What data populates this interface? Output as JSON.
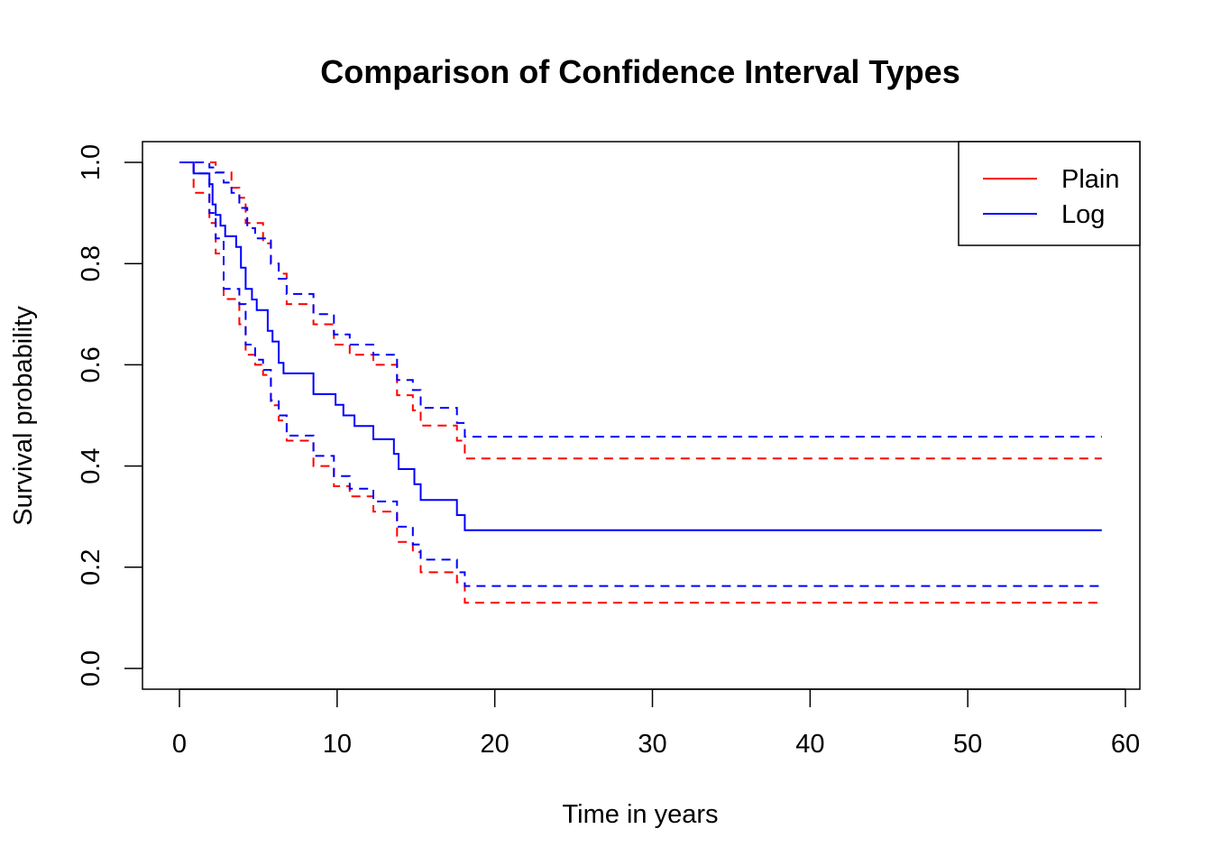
{
  "chart_data": {
    "type": "line",
    "title": "Comparison of Confidence Interval Types",
    "xlabel": "Time in years",
    "ylabel": "Survival probability",
    "xlim": [
      0,
      60
    ],
    "ylim": [
      0,
      1
    ],
    "x_ticks": [
      "0",
      "10",
      "20",
      "30",
      "40",
      "50",
      "60"
    ],
    "y_ticks": [
      "0.0",
      "0.2",
      "0.4",
      "0.6",
      "0.8",
      "1.0"
    ],
    "grid": false,
    "legend": {
      "position": "top-right",
      "entries": [
        {
          "label": "Plain",
          "color": "#ff0000"
        },
        {
          "label": "Log",
          "color": "#0000ff"
        }
      ]
    },
    "series": [
      {
        "name": "Plain",
        "color": "#ff0000",
        "step": true,
        "curves": [
          {
            "role": "upper",
            "dash": true,
            "x": [
              0,
              2.3,
              3.3,
              3.8,
              4.2,
              5.3,
              5.8,
              6.3,
              6.8,
              8.5,
              9.8,
              10.8,
              12.3,
              13.8,
              14.8,
              15.3,
              17.6,
              18.1,
              58.5
            ],
            "y": [
              1.0,
              0.98,
              0.95,
              0.93,
              0.88,
              0.84,
              0.8,
              0.78,
              0.72,
              0.68,
              0.64,
              0.62,
              0.6,
              0.54,
              0.51,
              0.48,
              0.45,
              0.415,
              0.415
            ]
          },
          {
            "role": "lower",
            "dash": true,
            "x": [
              0,
              0.9,
              1.9,
              2.3,
              2.8,
              3.8,
              4.2,
              4.8,
              5.3,
              5.8,
              6.3,
              6.8,
              8.5,
              9.8,
              10.8,
              12.3,
              13.8,
              14.8,
              15.3,
              17.6,
              18.1,
              58.5
            ],
            "y": [
              1.0,
              0.94,
              0.88,
              0.82,
              0.73,
              0.68,
              0.62,
              0.6,
              0.58,
              0.52,
              0.49,
              0.45,
              0.4,
              0.36,
              0.34,
              0.31,
              0.25,
              0.23,
              0.19,
              0.17,
              0.13,
              0.13
            ]
          }
        ]
      },
      {
        "name": "Log",
        "color": "#0000ff",
        "step": true,
        "curves": [
          {
            "role": "estimate",
            "dash": false,
            "x": [
              0,
              0.9,
              1.9,
              2.1,
              2.3,
              2.6,
              2.9,
              3.6,
              3.9,
              4.2,
              4.6,
              4.9,
              5.6,
              5.9,
              6.3,
              6.6,
              7.0,
              8.5,
              9.9,
              10.4,
              11.1,
              12.3,
              13.6,
              13.9,
              14.9,
              15.3,
              17.6,
              18.1,
              58.5
            ],
            "y": [
              1.0,
              0.978,
              0.957,
              0.917,
              0.896,
              0.875,
              0.854,
              0.833,
              0.792,
              0.75,
              0.729,
              0.708,
              0.667,
              0.646,
              0.604,
              0.583,
              0.583,
              0.542,
              0.521,
              0.5,
              0.479,
              0.453,
              0.424,
              0.394,
              0.364,
              0.333,
              0.303,
              0.273,
              0.273
            ]
          },
          {
            "role": "upper",
            "dash": true,
            "x": [
              0,
              1.9,
              2.3,
              2.8,
              3.3,
              3.8,
              4.3,
              4.8,
              5.8,
              6.3,
              6.8,
              8.5,
              9.8,
              10.8,
              12.3,
              13.8,
              14.8,
              15.3,
              17.6,
              18.1,
              58.5
            ],
            "y": [
              1.0,
              0.99,
              0.98,
              0.96,
              0.94,
              0.91,
              0.87,
              0.85,
              0.8,
              0.77,
              0.74,
              0.7,
              0.66,
              0.64,
              0.62,
              0.57,
              0.55,
              0.515,
              0.485,
              0.458,
              0.458
            ]
          },
          {
            "role": "lower",
            "dash": true,
            "x": [
              0,
              0.9,
              1.9,
              2.3,
              2.8,
              3.8,
              4.2,
              4.8,
              5.3,
              5.8,
              6.3,
              6.8,
              8.5,
              9.8,
              10.8,
              12.3,
              13.8,
              14.8,
              15.3,
              17.6,
              18.1,
              58.5
            ],
            "y": [
              1.0,
              0.978,
              0.9,
              0.85,
              0.75,
              0.72,
              0.64,
              0.61,
              0.59,
              0.53,
              0.5,
              0.46,
              0.42,
              0.38,
              0.355,
              0.33,
              0.28,
              0.245,
              0.215,
              0.19,
              0.163,
              0.163
            ]
          }
        ]
      }
    ]
  }
}
